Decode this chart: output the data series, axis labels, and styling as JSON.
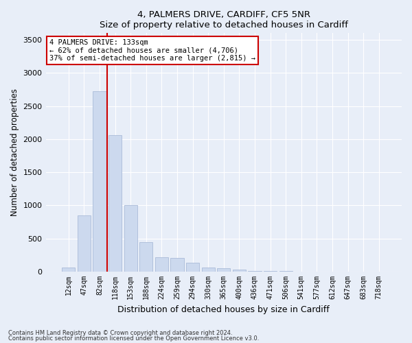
{
  "title1": "4, PALMERS DRIVE, CARDIFF, CF5 5NR",
  "title2": "Size of property relative to detached houses in Cardiff",
  "xlabel": "Distribution of detached houses by size in Cardiff",
  "ylabel": "Number of detached properties",
  "bar_color": "#ccd9ee",
  "bar_edgecolor": "#aabbd8",
  "bin_labels": [
    "12sqm",
    "47sqm",
    "82sqm",
    "118sqm",
    "153sqm",
    "188sqm",
    "224sqm",
    "259sqm",
    "294sqm",
    "330sqm",
    "365sqm",
    "400sqm",
    "436sqm",
    "471sqm",
    "506sqm",
    "541sqm",
    "577sqm",
    "612sqm",
    "647sqm",
    "683sqm",
    "718sqm"
  ],
  "bar_values": [
    60,
    850,
    2720,
    2060,
    1000,
    450,
    220,
    210,
    130,
    65,
    50,
    30,
    15,
    10,
    10,
    5,
    0,
    0,
    0,
    0,
    0
  ],
  "ylim": [
    0,
    3600
  ],
  "yticks": [
    0,
    500,
    1000,
    1500,
    2000,
    2500,
    3000,
    3500
  ],
  "property_line_x": 2.5,
  "annotation_text": "4 PALMERS DRIVE: 133sqm\n← 62% of detached houses are smaller (4,706)\n37% of semi-detached houses are larger (2,815) →",
  "annotation_box_color": "#ffffff",
  "annotation_border_color": "#cc0000",
  "footnote1": "Contains HM Land Registry data © Crown copyright and database right 2024.",
  "footnote2": "Contains public sector information licensed under the Open Government Licence v3.0.",
  "background_color": "#e8eef8",
  "plot_background": "#e8eef8",
  "grid_color": "#ffffff",
  "vline_color": "#cc0000"
}
